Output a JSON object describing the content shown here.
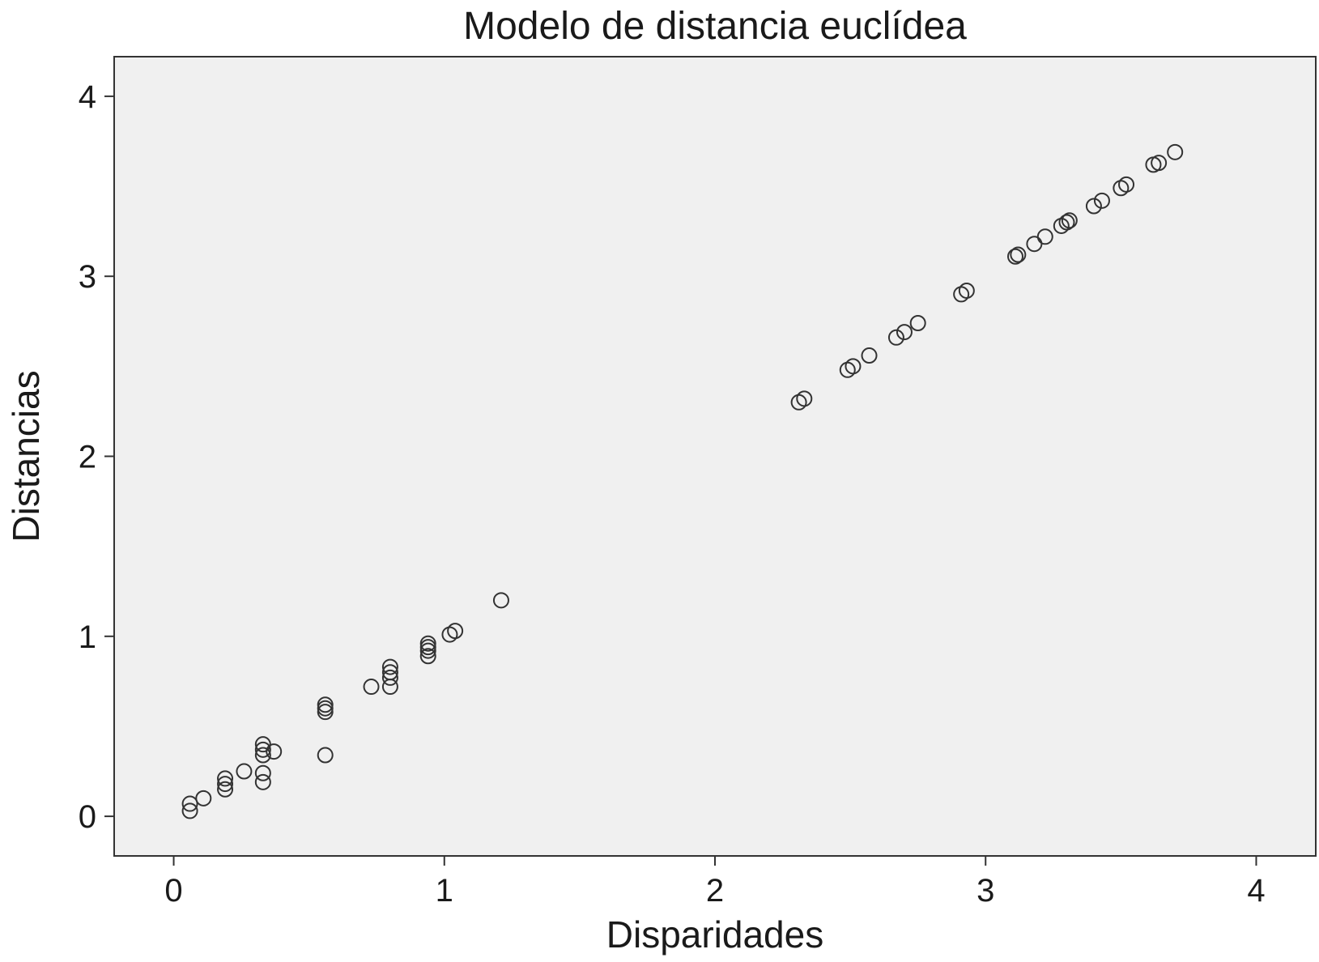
{
  "chart_data": {
    "type": "scatter",
    "title": "Modelo de distancia euclídea",
    "xlabel": "Disparidades",
    "ylabel": "Distancias",
    "xlim": [
      -0.22,
      4.22
    ],
    "ylim": [
      -0.22,
      4.22
    ],
    "xticks": [
      "0",
      "1",
      "2",
      "3",
      "4"
    ],
    "yticks": [
      "0",
      "1",
      "2",
      "3",
      "4"
    ],
    "grid": false,
    "legend": "none",
    "colors": {
      "plot_background": "#f0f0f0",
      "marker_stroke": "#333333",
      "axis": "#333333"
    },
    "points": [
      [
        0.06,
        0.03
      ],
      [
        0.06,
        0.07
      ],
      [
        0.11,
        0.1
      ],
      [
        0.19,
        0.15
      ],
      [
        0.19,
        0.18
      ],
      [
        0.19,
        0.21
      ],
      [
        0.26,
        0.25
      ],
      [
        0.33,
        0.19
      ],
      [
        0.33,
        0.24
      ],
      [
        0.33,
        0.34
      ],
      [
        0.33,
        0.37
      ],
      [
        0.33,
        0.4
      ],
      [
        0.37,
        0.36
      ],
      [
        0.56,
        0.34
      ],
      [
        0.56,
        0.58
      ],
      [
        0.56,
        0.6
      ],
      [
        0.56,
        0.62
      ],
      [
        0.73,
        0.72
      ],
      [
        0.8,
        0.72
      ],
      [
        0.8,
        0.77
      ],
      [
        0.8,
        0.8
      ],
      [
        0.8,
        0.83
      ],
      [
        0.94,
        0.89
      ],
      [
        0.94,
        0.92
      ],
      [
        0.94,
        0.94
      ],
      [
        0.94,
        0.96
      ],
      [
        1.02,
        1.01
      ],
      [
        1.04,
        1.03
      ],
      [
        1.21,
        1.2
      ],
      [
        2.31,
        2.3
      ],
      [
        2.33,
        2.32
      ],
      [
        2.49,
        2.48
      ],
      [
        2.51,
        2.5
      ],
      [
        2.57,
        2.56
      ],
      [
        2.67,
        2.66
      ],
      [
        2.7,
        2.69
      ],
      [
        2.75,
        2.74
      ],
      [
        2.91,
        2.9
      ],
      [
        2.93,
        2.92
      ],
      [
        3.11,
        3.11
      ],
      [
        3.12,
        3.12
      ],
      [
        3.18,
        3.18
      ],
      [
        3.22,
        3.22
      ],
      [
        3.28,
        3.28
      ],
      [
        3.3,
        3.3
      ],
      [
        3.31,
        3.31
      ],
      [
        3.4,
        3.39
      ],
      [
        3.43,
        3.42
      ],
      [
        3.5,
        3.49
      ],
      [
        3.52,
        3.51
      ],
      [
        3.62,
        3.62
      ],
      [
        3.64,
        3.63
      ],
      [
        3.7,
        3.69
      ]
    ]
  }
}
